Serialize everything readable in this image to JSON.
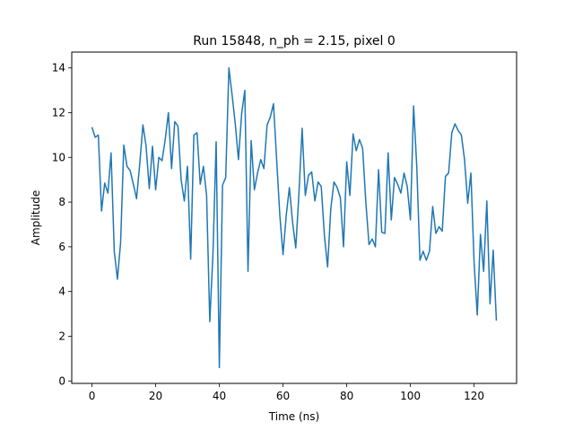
{
  "chart_data": {
    "type": "line",
    "title": "Run 15848, n_ph = 2.15, pixel 0",
    "xlabel": "Time (ns)",
    "ylabel": "Amplitude",
    "xlim": [
      -6.35,
      133.35
    ],
    "ylim": [
      -0.11,
      14.71
    ],
    "xticks": [
      0,
      20,
      40,
      60,
      80,
      100,
      120
    ],
    "yticks": [
      0,
      2,
      4,
      6,
      8,
      10,
      12,
      14
    ],
    "grid": false,
    "series": [
      {
        "name": "pixel 0",
        "color": "#1f77b4",
        "x": [
          0,
          1,
          2,
          3,
          4,
          5,
          6,
          7,
          8,
          9,
          10,
          11,
          12,
          13,
          14,
          15,
          16,
          17,
          18,
          19,
          20,
          21,
          22,
          23,
          24,
          25,
          26,
          27,
          28,
          29,
          30,
          31,
          32,
          33,
          34,
          35,
          36,
          37,
          38,
          39,
          40,
          41,
          42,
          43,
          44,
          45,
          46,
          47,
          48,
          49,
          50,
          51,
          52,
          53,
          54,
          55,
          56,
          57,
          58,
          59,
          60,
          61,
          62,
          63,
          64,
          65,
          66,
          67,
          68,
          69,
          70,
          71,
          72,
          73,
          74,
          75,
          76,
          77,
          78,
          79,
          80,
          81,
          82,
          83,
          84,
          85,
          86,
          87,
          88,
          89,
          90,
          91,
          92,
          93,
          94,
          95,
          96,
          97,
          98,
          99,
          100,
          101,
          102,
          103,
          104,
          105,
          106,
          107,
          108,
          109,
          110,
          111,
          112,
          113,
          114,
          115,
          116,
          117,
          118,
          119,
          120,
          121,
          122,
          123,
          124,
          125,
          126,
          127
        ],
        "values": [
          11.35,
          10.9,
          11.0,
          7.6,
          8.85,
          8.4,
          10.2,
          5.8,
          4.55,
          6.2,
          10.55,
          9.6,
          9.4,
          8.8,
          8.15,
          9.7,
          11.45,
          10.5,
          8.6,
          10.5,
          8.55,
          10.0,
          9.85,
          10.8,
          12.0,
          9.5,
          11.6,
          11.4,
          9.0,
          8.05,
          9.6,
          5.45,
          11.0,
          11.1,
          8.8,
          9.6,
          8.3,
          2.65,
          5.7,
          10.7,
          0.6,
          8.75,
          9.1,
          14.0,
          12.8,
          11.5,
          9.9,
          11.95,
          13.0,
          4.9,
          10.75,
          8.55,
          9.3,
          9.9,
          9.5,
          11.45,
          11.8,
          12.4,
          9.9,
          7.4,
          5.65,
          7.4,
          8.65,
          7.1,
          5.95,
          8.4,
          11.3,
          8.3,
          9.2,
          9.35,
          8.05,
          8.9,
          8.7,
          6.5,
          5.1,
          7.7,
          8.9,
          8.65,
          8.2,
          6.0,
          9.8,
          8.3,
          11.05,
          10.3,
          10.8,
          10.4,
          8.0,
          6.1,
          6.35,
          6.0,
          9.45,
          6.65,
          6.6,
          10.2,
          7.2,
          9.1,
          8.8,
          8.4,
          9.3,
          8.7,
          7.2,
          12.3,
          9.6,
          5.4,
          5.8,
          5.4,
          5.8,
          7.8,
          6.6,
          6.9,
          6.7,
          9.15,
          9.3,
          11.1,
          11.5,
          11.2,
          11.0,
          9.9,
          7.95,
          9.3,
          5.3,
          2.95,
          6.55,
          4.9,
          8.05,
          3.45,
          5.85,
          2.7
        ]
      }
    ]
  }
}
